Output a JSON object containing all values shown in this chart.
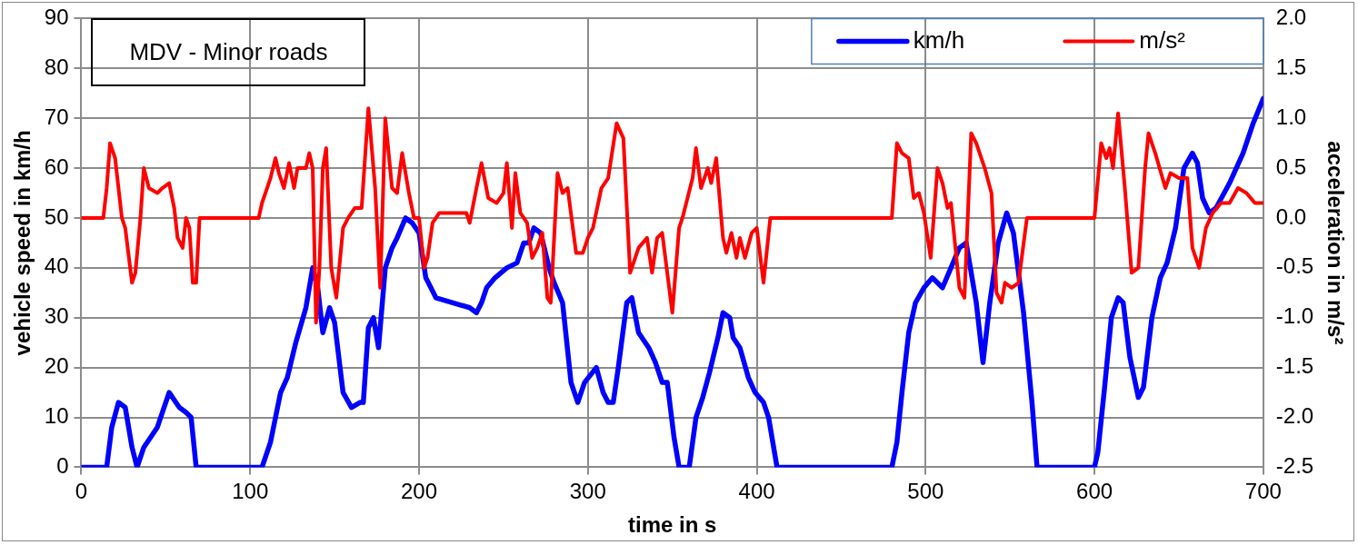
{
  "chart_data": {
    "type": "line",
    "title": "MDV - Minor roads",
    "xlabel": "time in s",
    "ylabel": "vehicle speed in km/h",
    "y2label": "acceleration in m/s²",
    "xlim": [
      0,
      700
    ],
    "xticks": [
      0,
      100,
      200,
      300,
      400,
      500,
      600,
      700
    ],
    "ylim": [
      0,
      90
    ],
    "yticks": [
      0,
      10,
      20,
      30,
      40,
      50,
      60,
      70,
      80,
      90
    ],
    "y2lim": [
      -2.5,
      2.0
    ],
    "y2ticks": [
      {
        "value": -2.5,
        "label": "-2.5"
      },
      {
        "value": -2,
        "label": "-2.0"
      },
      {
        "value": -1.5,
        "label": "-1.5"
      },
      {
        "value": -1,
        "label": "-1.0"
      },
      {
        "value": -0.5,
        "label": "-0.5"
      },
      {
        "value": 0,
        "label": "0.0"
      },
      {
        "value": 0.5,
        "label": "0.5"
      },
      {
        "value": 1,
        "label": "1.0"
      },
      {
        "value": 1.5,
        "label": "1.5"
      },
      {
        "value": 2,
        "label": "2.0"
      }
    ],
    "grid": true,
    "legend": "top right",
    "marker": "none",
    "line_style": "solid",
    "series": [
      {
        "name": "km/h",
        "color": "#0000ff",
        "x": [
          0,
          15,
          18,
          22,
          26,
          30,
          33,
          37,
          45,
          52,
          58,
          62,
          65,
          68,
          107,
          112,
          118,
          122,
          127,
          133,
          137,
          140,
          143,
          147,
          150,
          155,
          160,
          165,
          167,
          170,
          173,
          176,
          180,
          184,
          187,
          192,
          196,
          200,
          204,
          210,
          220,
          230,
          234,
          237,
          240,
          245,
          252,
          258,
          262,
          265,
          268,
          272,
          277,
          280,
          285,
          290,
          294,
          298,
          305,
          309,
          312,
          315,
          318,
          323,
          326,
          330,
          336,
          340,
          344,
          347,
          351,
          354,
          360,
          364,
          368,
          372,
          377,
          380,
          384,
          386,
          390,
          395,
          399,
          404,
          407,
          412,
          480,
          483,
          486,
          490,
          494,
          499,
          504,
          510,
          515,
          520,
          524,
          530,
          534,
          538,
          543,
          548,
          552,
          558,
          563,
          566,
          600,
          602,
          606,
          610,
          614,
          617,
          621,
          626,
          629,
          634,
          639,
          643,
          648,
          653,
          658,
          661,
          664,
          668,
          672,
          680,
          688,
          694,
          700
        ],
        "values": [
          0,
          0,
          8,
          13,
          12,
          4,
          0,
          4,
          8,
          15,
          12,
          11,
          10,
          0,
          0,
          5,
          15,
          18,
          25,
          32,
          40,
          36,
          27,
          32,
          29,
          15,
          12,
          13,
          13,
          28,
          30,
          24,
          40,
          44,
          46,
          50,
          49,
          47,
          38,
          34,
          33,
          32,
          31,
          33,
          36,
          38,
          40,
          41,
          45,
          45,
          48,
          47,
          40,
          37,
          33,
          17,
          13,
          17,
          20,
          15,
          13,
          13,
          20,
          33,
          34,
          27,
          24,
          21,
          17,
          17,
          6,
          0,
          0,
          10,
          14,
          19,
          26,
          31,
          30,
          26,
          24,
          18,
          15,
          13,
          10,
          0,
          0,
          5,
          15,
          27,
          33,
          36,
          38,
          36,
          40,
          44,
          45,
          33,
          21,
          33,
          45,
          51,
          47,
          31,
          13,
          0,
          0,
          3,
          16,
          30,
          34,
          33,
          22,
          14,
          16,
          30,
          38,
          41,
          48,
          60,
          63,
          61,
          54,
          51,
          52,
          57,
          63,
          69,
          74
        ]
      },
      {
        "name": "m/s²",
        "color": "#ff0000",
        "axis": "y2",
        "x": [
          0,
          13,
          15,
          17,
          20,
          24,
          26,
          30,
          32,
          35,
          37,
          40,
          45,
          48,
          52,
          55,
          57,
          60,
          62,
          64,
          66,
          68,
          70,
          105,
          107,
          110,
          112,
          115,
          117,
          120,
          123,
          126,
          128,
          133,
          135,
          137,
          139,
          141,
          143,
          145,
          148,
          151,
          155,
          158,
          162,
          166,
          170,
          174,
          177,
          180,
          184,
          187,
          190,
          194,
          197,
          200,
          203,
          205,
          208,
          212,
          220,
          228,
          230,
          234,
          237,
          241,
          246,
          250,
          252,
          255,
          257,
          260,
          264,
          267,
          270,
          273,
          276,
          278,
          282,
          285,
          288,
          293,
          297,
          300,
          303,
          308,
          312,
          317,
          321,
          325,
          330,
          335,
          338,
          341,
          344,
          350,
          354,
          356,
          362,
          364,
          367,
          371,
          373,
          376,
          380,
          382,
          385,
          388,
          390,
          393,
          397,
          400,
          404,
          408,
          480,
          483,
          486,
          490,
          493,
          496,
          499,
          503,
          507,
          510,
          513,
          515,
          520,
          523,
          527,
          530,
          535,
          539,
          542,
          545,
          547,
          551,
          555,
          560,
          600,
          604,
          607,
          609,
          611,
          614,
          618,
          622,
          626,
          630,
          632,
          636,
          642,
          645,
          650,
          655,
          658,
          662,
          666,
          670,
          675,
          680,
          685,
          690,
          695,
          700
        ],
        "values": [
          0,
          0,
          0.3,
          0.75,
          0.6,
          0,
          -0.1,
          -0.65,
          -0.55,
          0,
          0.5,
          0.3,
          0.25,
          0.3,
          0.35,
          0.1,
          -0.2,
          -0.3,
          0,
          -0.1,
          -0.65,
          -0.65,
          0,
          0,
          0.15,
          0.3,
          0.4,
          0.6,
          0.45,
          0.3,
          0.55,
          0.3,
          0.5,
          0.5,
          0.65,
          0.5,
          -1.05,
          -0.5,
          0.5,
          0.7,
          -0.5,
          -0.8,
          -0.1,
          0,
          0.1,
          0.1,
          1.1,
          0.3,
          -0.7,
          1.0,
          0.3,
          0.25,
          0.65,
          0.25,
          0,
          0,
          -0.5,
          -0.4,
          -0.05,
          0.05,
          0.05,
          0.05,
          -0.05,
          0.3,
          0.55,
          0.2,
          0.15,
          0.25,
          0.55,
          -0.1,
          0.45,
          0.05,
          -0.05,
          -0.4,
          -0.3,
          -0.15,
          -0.8,
          -0.85,
          0.45,
          0.25,
          0.3,
          -0.35,
          -0.35,
          -0.2,
          -0.1,
          0.3,
          0.4,
          0.95,
          0.8,
          -0.55,
          -0.3,
          -0.2,
          -0.55,
          -0.2,
          -0.15,
          -0.95,
          -0.1,
          0,
          0.4,
          0.7,
          0.3,
          0.5,
          0.35,
          0.6,
          -0.2,
          -0.35,
          -0.15,
          -0.4,
          -0.2,
          -0.4,
          -0.15,
          -0.1,
          -0.65,
          0,
          0,
          0.75,
          0.65,
          0.6,
          0.2,
          0.25,
          0.05,
          -0.4,
          0.5,
          0.35,
          0.1,
          0.15,
          -0.7,
          -0.8,
          0.85,
          0.75,
          0.5,
          0.25,
          -0.75,
          -0.85,
          -0.65,
          -0.7,
          -0.65,
          0,
          0,
          0.75,
          0.6,
          0.7,
          0.5,
          1.05,
          0.3,
          -0.55,
          -0.5,
          0.5,
          0.85,
          0.65,
          0.3,
          0.45,
          0.4,
          0.4,
          -0.3,
          -0.5,
          -0.1,
          0.05,
          0.15,
          0.15,
          0.3,
          0.25,
          0.15,
          0.15
        ]
      }
    ]
  }
}
